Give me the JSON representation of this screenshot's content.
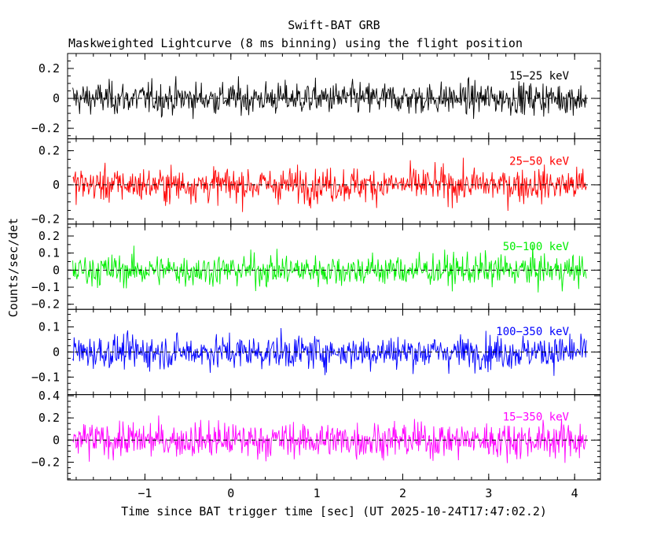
{
  "chart_data": {
    "type": "line",
    "title": "Swift-BAT GRB",
    "subtitle": "Maskweighted Lightcurve (8 ms binning) using the flight position",
    "xlabel": "Time since BAT trigger time [sec] (UT 2025-10-24T17:47:02.2)",
    "ylabel": "Counts/sec/det",
    "xlim": [
      -1.9,
      4.3
    ],
    "x_ticks": [
      "−1",
      "0",
      "1",
      "2",
      "3",
      "4"
    ],
    "x_tick_values": [
      -1,
      0,
      1,
      2,
      3,
      4
    ],
    "time_range": [
      -1.84,
      4.14
    ],
    "bin_width": 0.008,
    "grid": false,
    "panels": [
      {
        "label": "15−25 keV",
        "color": "#000000",
        "ylim": [
          -0.27,
          0.3
        ],
        "yticks": [
          0.2,
          0,
          -0.2
        ],
        "ytick_labels": [
          "0.2",
          "0",
          "−0.2"
        ],
        "noise_sigma": 0.08,
        "baseline": 0
      },
      {
        "label": "25−50 keV",
        "color": "#ff0000",
        "ylim": [
          -0.23,
          0.27
        ],
        "yticks": [
          0.2,
          0,
          -0.2
        ],
        "ytick_labels": [
          "0.2",
          "0",
          "−0.2"
        ],
        "noise_sigma": 0.075,
        "baseline": 0
      },
      {
        "label": "50−100 keV",
        "color": "#00ee00",
        "ylim": [
          -0.23,
          0.27
        ],
        "yticks": [
          0.2,
          0.1,
          0,
          -0.1,
          -0.2
        ],
        "ytick_labels": [
          "0.2",
          "0.1",
          "0",
          "−0.1",
          "−0.2"
        ],
        "noise_sigma": 0.07,
        "baseline": 0
      },
      {
        "label": "100−350 keV",
        "color": "#0000ff",
        "ylim": [
          -0.17,
          0.17
        ],
        "yticks": [
          0.1,
          0,
          -0.1
        ],
        "ytick_labels": [
          "0.1",
          "0",
          "−0.1"
        ],
        "noise_sigma": 0.05,
        "baseline": 0
      },
      {
        "label": "15−350 keV",
        "color": "#ff00ff",
        "ylim": [
          -0.36,
          0.41
        ],
        "yticks": [
          0.4,
          0.2,
          0,
          -0.2
        ],
        "ytick_labels": [
          "0.4",
          "0.2",
          "0",
          "−0.2"
        ],
        "noise_sigma": 0.12,
        "baseline": 0
      }
    ]
  }
}
